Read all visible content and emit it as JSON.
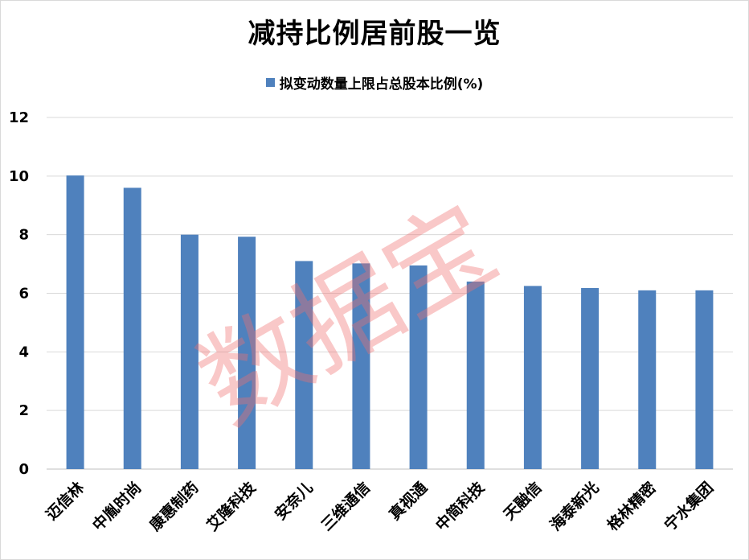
{
  "chart_data": {
    "type": "bar",
    "title": "减持比例居前股一览",
    "series": [
      {
        "name": "拟变动数量上限占总股本比例(%)",
        "values": [
          10.02,
          9.6,
          8.0,
          7.93,
          7.1,
          7.02,
          6.95,
          6.4,
          6.25,
          6.18,
          6.1,
          6.1
        ]
      }
    ],
    "categories": [
      "迈信林",
      "中胤时尚",
      "康惠制药",
      "艾隆科技",
      "安奈儿",
      "三维通信",
      "真视通",
      "中简科技",
      "天融信",
      "海泰新光",
      "格林精密",
      "宁水集团"
    ],
    "ylim": [
      0,
      12
    ],
    "yticks": [
      0,
      2,
      4,
      6,
      8,
      10,
      12
    ],
    "grid": true,
    "legend_position": "top",
    "colors": {
      "bar": "#4f81bd",
      "grid": "#d9d9d9",
      "watermark": "#f06e6e"
    },
    "watermark": "数据宝"
  }
}
